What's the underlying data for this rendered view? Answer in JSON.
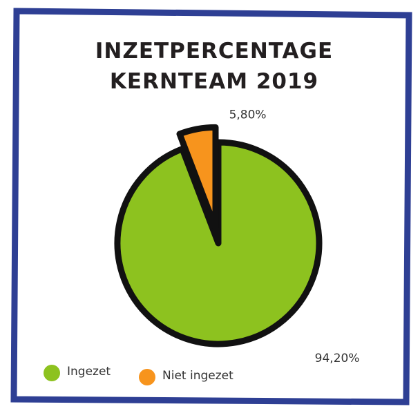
{
  "chart_data": {
    "type": "pie",
    "title": "INZETPERCENTAGE KERNTEAM 2019",
    "categories": [
      "Ingezet",
      "Niet ingezet"
    ],
    "values": [
      94.2,
      5.8
    ],
    "value_labels": [
      "94,20%",
      "5,80%"
    ],
    "colors": [
      "#8dc21f",
      "#f7941d"
    ],
    "legend": "bottom-left"
  }
}
